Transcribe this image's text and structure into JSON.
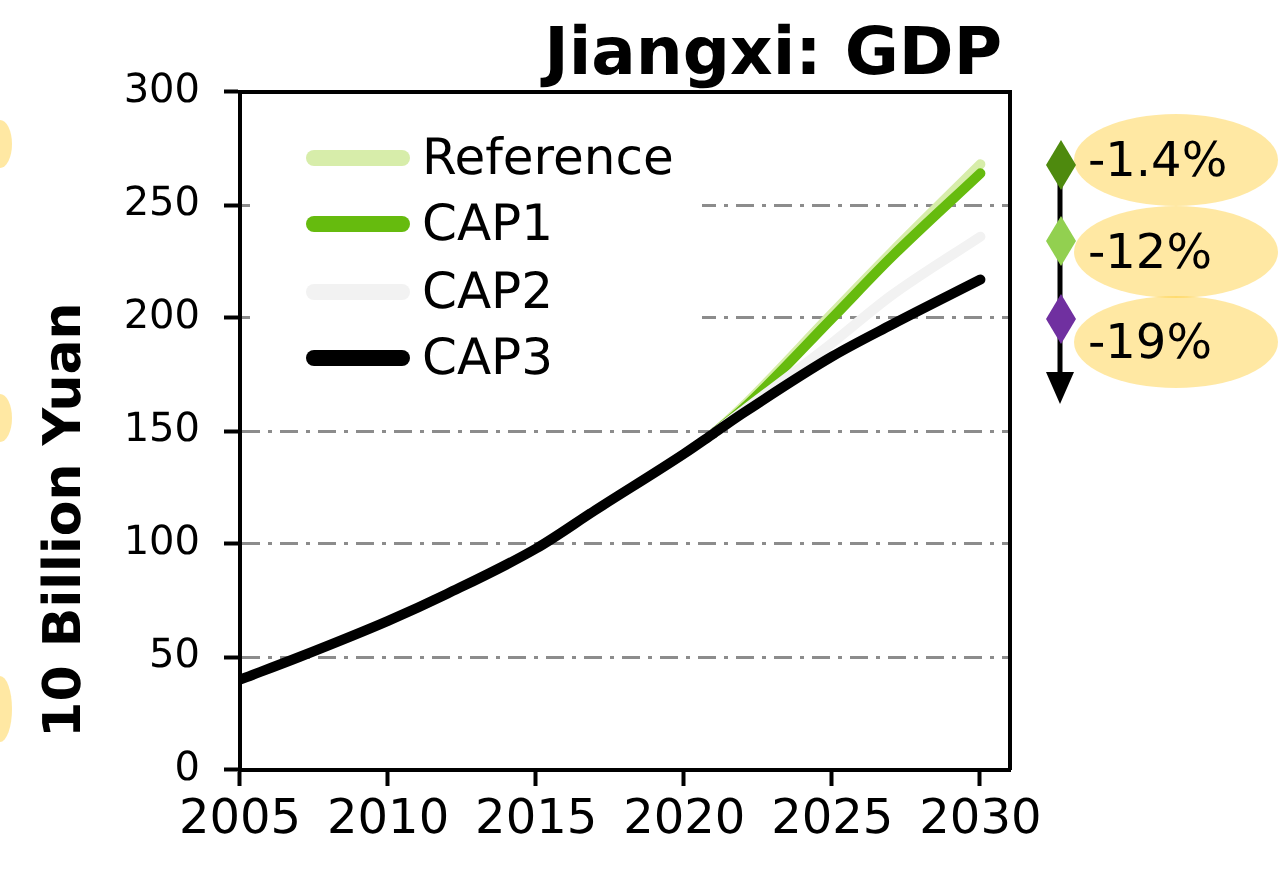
{
  "chart_data": {
    "type": "line",
    "title": "Jiangxi: GDP",
    "ylabel": "10 Billion Yuan",
    "x": [
      2005,
      2007,
      2010,
      2012,
      2015,
      2017,
      2020,
      2021,
      2022,
      2025,
      2027,
      2030
    ],
    "series": [
      {
        "name": "Reference",
        "color": "#d7edaa",
        "values": [
          null,
          null,
          null,
          null,
          null,
          null,
          null,
          149,
          161,
          202,
          229,
          268
        ]
      },
      {
        "name": "CAP1",
        "color": "#66bb0e",
        "values": [
          null,
          null,
          null,
          null,
          null,
          null,
          null,
          149,
          160,
          200,
          227,
          264
        ]
      },
      {
        "name": "CAP2",
        "color": "#f2f2f2",
        "values": [
          null,
          null,
          null,
          null,
          null,
          null,
          null,
          149,
          159,
          189,
          210,
          236
        ]
      },
      {
        "name": "CAP3",
        "color": "#000000",
        "values": [
          40,
          50,
          66,
          78,
          98,
          115,
          140,
          149,
          158,
          183,
          197,
          217
        ]
      }
    ],
    "xlim": [
      2005,
      2031
    ],
    "xticks": [
      2005,
      2010,
      2015,
      2020,
      2025,
      2030
    ],
    "ylim": [
      0,
      300
    ],
    "yticks": [
      0,
      50,
      100,
      150,
      200,
      250,
      300
    ],
    "grid": "y",
    "legend": "top left",
    "annotations": [
      "-1.4%",
      "-12%",
      "-19%"
    ]
  }
}
